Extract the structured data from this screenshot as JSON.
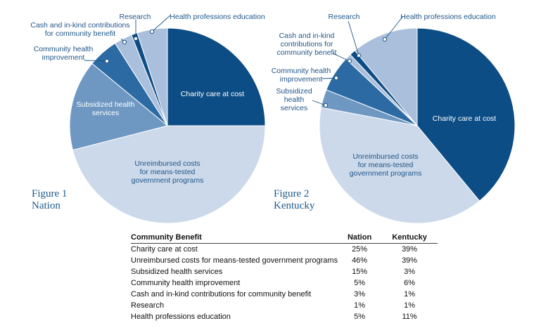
{
  "chart_data": [
    {
      "type": "pie",
      "caption": [
        "Figure 1",
        "Nation"
      ],
      "categories": [
        "Charity care at cost",
        "Unreimbursed costs for means-tested government programs",
        "Subsidized health services",
        "Community health improvement",
        "Cash and in-kind contributions for community benefit",
        "Research",
        "Health professions education"
      ],
      "labels": [
        [
          "Charity care at cost"
        ],
        [
          "Unreimbursed costs",
          "for means-tested",
          "government programs"
        ],
        [
          "Subsidized health",
          "services"
        ],
        [
          "Community health",
          "improvement"
        ],
        [
          "Cash and in-kind contributions",
          "for community benefit"
        ],
        [
          "Research"
        ],
        [
          "Health professions education"
        ]
      ],
      "values": [
        25,
        46,
        15,
        5,
        3,
        1,
        5
      ],
      "unit": "%"
    },
    {
      "type": "pie",
      "caption": [
        "Figure 2",
        "Kentucky"
      ],
      "categories": [
        "Charity care at cost",
        "Unreimbursed costs for means-tested government programs",
        "Subsidized health services",
        "Community health improvement",
        "Cash and in-kind contributions for community benefit",
        "Research",
        "Health professions education"
      ],
      "labels": [
        [
          "Charity care at cost"
        ],
        [
          "Unreimbursed costs",
          "for means-tested",
          "government programs"
        ],
        [
          "Subsidized",
          "health",
          "services"
        ],
        [
          "Community health",
          "improvement"
        ],
        [
          "Cash and in-kind",
          "contributions for",
          "community benefit"
        ],
        [
          "Research"
        ],
        [
          "Health professions education"
        ]
      ],
      "values": [
        39,
        39,
        3,
        6,
        1,
        1,
        11
      ],
      "unit": "%"
    }
  ],
  "colors": [
    "#0d4d85",
    "#ccd9ea",
    "#6e97c2",
    "#2c6aa3",
    "#a9bfdc",
    "#0d4d85",
    "#a9bfdc"
  ],
  "label_colors": {
    "inside_dark": "#ffffff",
    "inside_light": "#1f5588",
    "outside": "#1f5588",
    "slice_edge": "#ffffff"
  },
  "table": {
    "headers": [
      "Community Benefit",
      "Nation",
      "Kentucky"
    ],
    "rows": [
      [
        "Charity care at cost",
        "25%",
        "39%"
      ],
      [
        "Unreimbursed costs for means-tested government programs",
        "46%",
        "39%"
      ],
      [
        "Subsidized health services",
        "15%",
        "3%"
      ],
      [
        "Community health improvement",
        "5%",
        "6%"
      ],
      [
        "Cash and in-kind contributions for community benefit",
        "3%",
        "1%"
      ],
      [
        "Research",
        "1%",
        "1%"
      ],
      [
        "Health professions education",
        "5%",
        "11%"
      ]
    ]
  }
}
